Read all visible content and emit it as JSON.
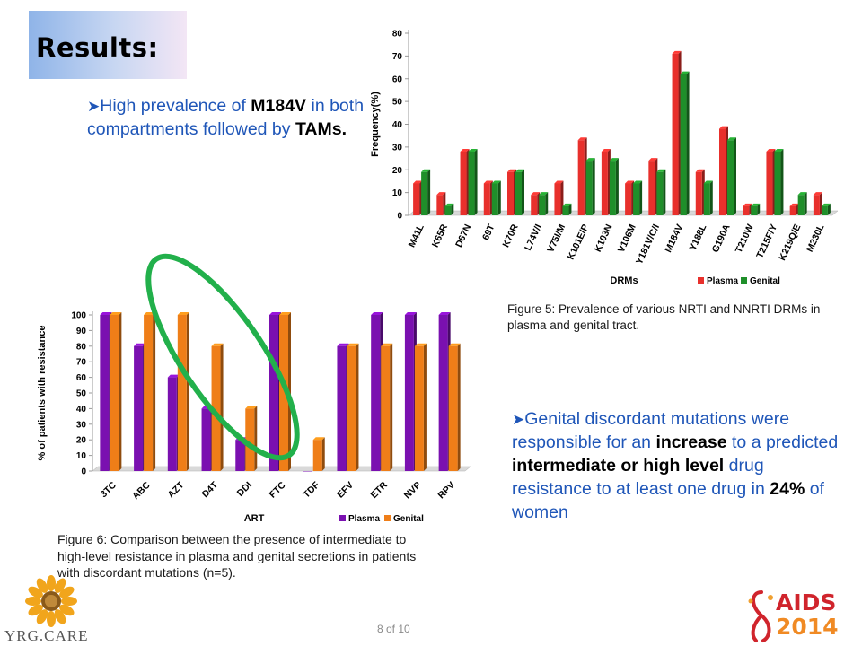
{
  "slide": {
    "title": "Results:",
    "page_label": "8 of 10",
    "left_logo_text": "YRG.CARE",
    "right_logo_line1": "AIDS",
    "right_logo_line2": "2014"
  },
  "bullets": {
    "first": {
      "p1": "High prevalence of ",
      "b1": "M184V",
      "p2": " in both compartments followed by ",
      "b2": "TAMs."
    },
    "second": {
      "p1": "Genital discordant mutations were responsible for an ",
      "b1": "increase",
      "p2": " to a predicted ",
      "b2": "intermediate or high level",
      "p3": " drug resistance to at least one drug in ",
      "b3": "24%",
      "p4": " of women"
    }
  },
  "captions": {
    "figure5": "Figure 5:   Prevalence of various NRTI and NNRTI DRMs in plasma and genital tract.",
    "figure6": "Figure 6: Comparison between the presence of intermediate to high-level resistance in plasma and genital secretions in patients with discordant mutations (n=5)."
  },
  "colors": {
    "plasma_fig5": "#e8302c",
    "genital_fig5": "#1f8f2a",
    "plasma_fig6": "#7a10b0",
    "genital_fig6": "#ef7e18",
    "highlight_ellipse": "#22b04b"
  },
  "chart_data": [
    {
      "type": "bar",
      "xlabel": "DRMs",
      "ylabel": "Frequency(%)",
      "ylim": [
        0,
        80
      ],
      "yticks": [
        0,
        10,
        20,
        30,
        40,
        50,
        60,
        70,
        80
      ],
      "legend_position": "bottom-right",
      "categories": [
        "M41L",
        "K65R",
        "D67N",
        "69T",
        "K70R",
        "L74V/I",
        "V75I/M",
        "K101E/P",
        "K103N",
        "V106M",
        "Y181V/C/I",
        "M184V",
        "Y188L",
        "G190A",
        "T210W",
        "T215F/Y",
        "K219Q/E",
        "M230L"
      ],
      "series": [
        {
          "name": "Plasma",
          "values": [
            14,
            9,
            28,
            14,
            19,
            9,
            14,
            33,
            28,
            14,
            24,
            71,
            19,
            38,
            4,
            28,
            4,
            9
          ]
        },
        {
          "name": "Genital",
          "values": [
            19,
            4,
            28,
            14,
            19,
            9,
            4,
            24,
            24,
            14,
            19,
            62,
            14,
            33,
            4,
            28,
            9,
            4
          ]
        }
      ]
    },
    {
      "type": "bar",
      "xlabel": "ART",
      "ylabel": "% of patients with resistance",
      "ylim": [
        0,
        100
      ],
      "yticks": [
        0,
        10,
        20,
        30,
        40,
        50,
        60,
        70,
        80,
        90,
        100
      ],
      "legend_position": "bottom-right",
      "categories": [
        "3TC",
        "ABC",
        "AZT",
        "D4T",
        "DDI",
        "FTC",
        "TDF",
        "EFV",
        "ETR",
        "NVP",
        "RPV"
      ],
      "series": [
        {
          "name": "Plasma",
          "values": [
            100,
            80,
            60,
            40,
            20,
            100,
            0,
            80,
            100,
            100,
            100
          ]
        },
        {
          "name": "Genital",
          "values": [
            100,
            100,
            100,
            80,
            40,
            100,
            20,
            80,
            80,
            80,
            80
          ]
        }
      ]
    }
  ]
}
